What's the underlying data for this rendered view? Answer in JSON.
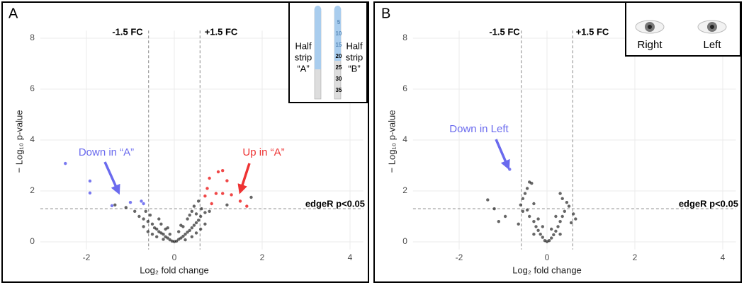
{
  "chart_data": [
    {
      "type": "scatter",
      "panel_label": "A",
      "x_label": "Log₂ fold change",
      "y_label": "− Log₁₀ p-value",
      "xlim": [
        -3.05,
        4.3
      ],
      "ylim": [
        -0.3,
        8.3
      ],
      "xticks": [
        -2,
        0,
        2,
        4
      ],
      "yticks": [
        0,
        2,
        4,
        6,
        8
      ],
      "grid": true,
      "vlines": [
        -0.585,
        0.585
      ],
      "hline": 1.301,
      "annotations": [
        "-1.5 FC",
        "+1.5 FC",
        "edgeR p<0.05",
        "Down in “A”",
        "Up in “A”"
      ],
      "inset": {
        "left_label": [
          "Half",
          "strip",
          "“A”"
        ],
        "right_label": [
          "Half",
          "strip",
          "“B”"
        ],
        "numbers": [
          5,
          10,
          15,
          20,
          25,
          30,
          35
        ]
      },
      "series": [
        {
          "color": "#000000",
          "x": [
            -1.35,
            -1.1,
            -0.9,
            -0.8,
            -0.7,
            -0.6,
            -0.5,
            -0.45,
            -0.4,
            -0.35,
            -0.3,
            -0.25,
            -0.2,
            -0.15,
            -0.1,
            -0.05,
            0,
            0.05,
            0.1,
            0.15,
            0.2,
            0.25,
            0.3,
            0.35,
            0.4,
            0.45,
            0.5,
            0.55,
            0.6,
            0.5,
            0.4,
            0.45,
            0.55,
            0.62,
            0.7,
            1.75,
            1.2,
            -0.55,
            -0.65,
            -0.3,
            -0.2,
            0.2,
            0.3,
            -0.1,
            0.1,
            -0.4,
            0.4,
            -0.6,
            0.6,
            -0.25,
            0.25,
            -0.7,
            0.7,
            -0.5,
            0.5,
            -0.15,
            0.15,
            0.35,
            -0.35,
            0.8
          ],
          "values": [
            1.45,
            1.35,
            1.2,
            1.0,
            0.9,
            0.8,
            0.7,
            0.55,
            0.5,
            0.4,
            0.35,
            0.3,
            0.2,
            0.15,
            0.08,
            0.03,
            0.01,
            0.03,
            0.1,
            0.15,
            0.22,
            0.3,
            0.38,
            0.45,
            0.55,
            0.65,
            0.75,
            0.85,
            1.0,
            1.1,
            1.2,
            1.4,
            1.6,
            1.3,
            1.15,
            1.75,
            1.45,
            1.05,
            1.2,
            0.7,
            0.5,
            0.6,
            0.9,
            0.3,
            0.4,
            0.2,
            0.2,
            0.4,
            0.5,
            0.1,
            0.08,
            0.6,
            0.7,
            0.3,
            0.35,
            0.55,
            0.65,
            1.05,
            0.9,
            1.2
          ]
        },
        {
          "color": "#6a6aee",
          "x": [
            -2.48,
            -1.92,
            -1.92,
            -1.42,
            -1.0,
            -0.7,
            -0.75
          ],
          "values": [
            3.08,
            2.39,
            1.92,
            1.42,
            1.55,
            1.5,
            1.6
          ]
        },
        {
          "color": "#ee3333",
          "x": [
            1.1,
            1.0,
            0.8,
            1.2,
            0.75,
            0.95,
            1.3,
            1.5,
            0.7,
            1.65,
            0.85,
            1.1
          ],
          "values": [
            2.8,
            2.75,
            2.5,
            2.4,
            2.1,
            1.9,
            1.85,
            1.6,
            1.8,
            1.4,
            1.5,
            1.9
          ]
        }
      ]
    },
    {
      "type": "scatter",
      "panel_label": "B",
      "x_label": "Log₂ fold change",
      "y_label": "− Log₁₀ p-value",
      "xlim": [
        -3.05,
        4.3
      ],
      "ylim": [
        -0.3,
        8.3
      ],
      "xticks": [
        -2,
        0,
        2,
        4
      ],
      "yticks": [
        0,
        2,
        4,
        6,
        8
      ],
      "grid": true,
      "vlines": [
        -0.585,
        0.585
      ],
      "hline": 1.301,
      "annotations": [
        "-1.5 FC",
        "+1.5 FC",
        "edgeR p<0.05",
        "Down in Left"
      ],
      "inset": {
        "eye_labels": [
          "Right",
          "Left"
        ]
      },
      "series": [
        {
          "color": "#000000",
          "x": [
            -1.35,
            -1.2,
            -1.1,
            -0.95,
            -0.6,
            -0.55,
            -0.45,
            -0.4,
            -0.35,
            -0.5,
            -0.3,
            0.3,
            0.35,
            0.5,
            0.6,
            0.65,
            -0.4,
            -0.3,
            -0.25,
            -0.2,
            -0.15,
            -0.1,
            -0.05,
            0,
            0.05,
            0.1,
            0.15,
            0.2,
            0.25,
            0.3,
            0.35,
            0.4,
            -0.45,
            -0.3,
            0.3,
            -0.2,
            0.2,
            -0.1,
            0.1,
            0.45,
            -0.55,
            -0.65,
            0.55
          ],
          "values": [
            1.65,
            1.3,
            0.8,
            1.0,
            1.45,
            1.7,
            2.1,
            2.35,
            2.3,
            1.9,
            1.5,
            1.9,
            1.7,
            1.4,
            1.1,
            0.9,
            1.0,
            0.8,
            0.6,
            0.45,
            0.3,
            0.18,
            0.05,
            0.01,
            0.05,
            0.15,
            0.28,
            0.42,
            0.6,
            0.8,
            1.0,
            1.2,
            1.25,
            0.3,
            0.3,
            0.9,
            1.0,
            0.6,
            0.5,
            1.55,
            1.2,
            0.7,
            0.75
          ]
        },
        {
          "color": "#6a6aee",
          "x": [
            -0.85
          ],
          "values": [
            2.85
          ]
        }
      ]
    }
  ]
}
